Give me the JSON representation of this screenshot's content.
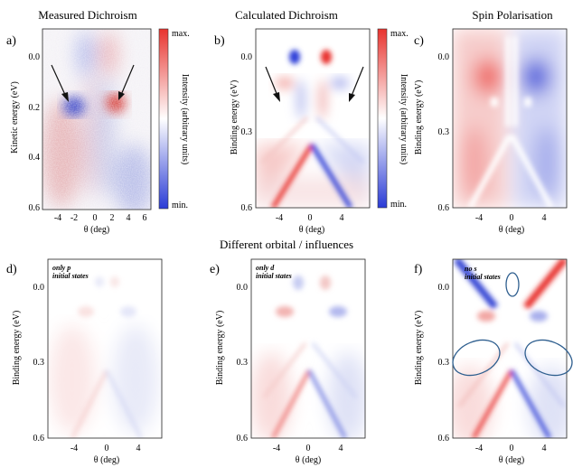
{
  "header": {
    "top_titles": [
      "Measured Dichroism",
      "Calculated Dichroism",
      "Spin Polarisation"
    ],
    "middle_title": "Different orbital / influences"
  },
  "colors": {
    "red": "#e8332e",
    "blue": "#2a3bd6",
    "white": "#ffffff",
    "ellipse": "#2f5f8f"
  },
  "panels": [
    {
      "label": "a)",
      "ylabel": "Kinetic energy (eV)",
      "yticks": [
        "0.0",
        "0.2",
        "0.4",
        "0.6"
      ],
      "xticks": [
        "-4",
        "-2",
        "0",
        "2",
        "4",
        "6"
      ],
      "xlabel": "θ (deg)",
      "note": ""
    },
    {
      "label": "b)",
      "ylabel": "Binding energy (eV)",
      "yticks": [
        "0.0",
        "0.3",
        "0.6"
      ],
      "xticks": [
        "-4",
        "0",
        "4"
      ],
      "xlabel": "θ (deg)",
      "note": ""
    },
    {
      "label": "c)",
      "ylabel": "Binding energy (eV)",
      "yticks": [
        "0.0",
        "0.3",
        "0.6"
      ],
      "xticks": [
        "-4",
        "0",
        "4"
      ],
      "xlabel": "θ (deg)",
      "note": ""
    },
    {
      "label": "d)",
      "ylabel": "Binding energy (eV)",
      "yticks": [
        "0.0",
        "0.3",
        "0.6"
      ],
      "xticks": [
        "-4",
        "0",
        "4"
      ],
      "xlabel": "θ (deg)",
      "note": "only p initial states"
    },
    {
      "label": "e)",
      "ylabel": "Binding energy (eV)",
      "yticks": [
        "0.0",
        "0.3",
        "0.6"
      ],
      "xticks": [
        "-4",
        "0",
        "4"
      ],
      "xlabel": "θ (deg)",
      "note": "only d initial states"
    },
    {
      "label": "f)",
      "ylabel": "Binding energy (eV)",
      "yticks": [
        "0.0",
        "0.3",
        "0.6"
      ],
      "xticks": [
        "-4",
        "0",
        "4"
      ],
      "xlabel": "θ (deg)",
      "note": "no s initial states"
    }
  ],
  "colorbars": [
    {
      "max": "max.",
      "min": "min.",
      "label": "Intensity (arbitrary units)"
    },
    {
      "max": "max.",
      "min": "min.",
      "label": "Intensity (arbitrary units)"
    }
  ]
}
